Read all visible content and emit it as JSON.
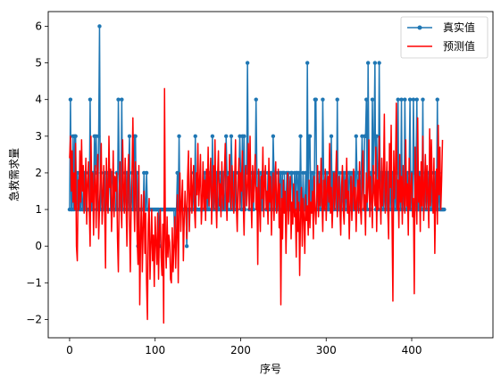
{
  "chart_data": {
    "type": "line",
    "xlabel": "序号",
    "ylabel": "急救需求量",
    "xlim": [
      -25,
      495
    ],
    "ylim": [
      -2.5,
      6.4
    ],
    "xticks": [
      0,
      100,
      200,
      300,
      400
    ],
    "yticks": [
      -2,
      -1,
      0,
      1,
      2,
      3,
      4,
      5,
      6
    ],
    "legend_position": "top-right",
    "grid": false,
    "series": [
      {
        "name": "真实值",
        "color": "#1f77b4",
        "marker": "circle",
        "values": [
          1,
          4,
          1,
          1,
          3,
          1,
          3,
          3,
          1,
          2,
          1,
          2,
          1,
          1,
          2,
          1,
          1,
          2,
          1,
          2,
          1,
          1,
          1,
          1,
          4,
          1,
          1,
          2,
          1,
          3,
          2,
          3,
          2,
          1,
          3,
          6,
          1,
          2,
          1,
          1,
          1,
          2,
          1,
          1,
          2,
          1,
          2,
          2,
          1,
          2,
          2,
          1,
          1,
          1,
          1,
          2,
          1,
          4,
          2,
          1,
          1,
          4,
          1,
          1,
          1,
          2,
          1,
          2,
          1,
          2,
          3,
          1,
          1,
          2,
          1,
          1,
          3,
          3,
          1,
          2,
          0,
          1,
          1,
          1,
          1,
          1,
          1,
          2,
          1,
          1,
          2,
          1,
          1,
          1,
          1,
          1,
          1,
          1,
          1,
          1,
          1,
          1,
          1,
          1,
          1,
          0,
          1,
          1,
          1,
          1,
          1,
          1,
          1,
          1,
          1,
          1,
          1,
          1,
          1,
          1,
          1,
          1,
          1,
          0,
          1,
          1,
          2,
          1,
          3,
          1,
          1,
          1,
          1,
          1,
          1,
          1,
          1,
          0,
          1,
          1,
          1,
          1,
          1,
          1,
          1,
          2,
          1,
          3,
          1,
          1,
          1,
          1,
          1,
          1,
          1,
          1,
          1,
          1,
          2,
          1,
          2,
          1,
          2,
          1,
          2,
          2,
          1,
          3,
          1,
          1,
          2,
          1,
          2,
          1,
          1,
          2,
          1,
          2,
          1,
          1,
          2,
          1,
          1,
          3,
          2,
          1,
          2,
          2,
          1,
          3,
          2,
          1,
          2,
          1,
          2,
          1,
          1,
          2,
          2,
          3,
          2,
          1,
          3,
          1,
          3,
          1,
          2,
          2,
          5,
          2,
          1,
          2,
          2,
          1,
          2,
          1,
          2,
          2,
          4,
          2,
          1,
          1,
          2,
          1,
          2,
          1,
          1,
          2,
          2,
          2,
          1,
          1,
          2,
          1,
          2,
          1,
          2,
          1,
          3,
          2,
          1,
          2,
          1,
          1,
          2,
          1,
          2,
          2,
          1,
          2,
          2,
          2,
          1,
          1,
          2,
          1,
          2,
          1,
          1,
          2,
          2,
          1,
          1,
          2,
          1,
          2,
          2,
          1,
          2,
          1,
          3,
          1,
          1,
          2,
          1,
          1,
          2,
          1,
          5,
          1,
          3,
          3,
          1,
          2,
          1,
          2,
          1,
          4,
          4,
          1,
          2,
          1,
          2,
          1,
          2,
          1,
          4,
          2,
          1,
          2,
          1,
          2,
          1,
          1,
          2,
          1,
          3,
          1,
          2,
          1,
          2,
          2,
          1,
          4,
          1,
          1,
          2,
          1,
          1,
          2,
          1,
          2,
          1,
          2,
          1,
          2,
          1,
          2,
          2,
          1,
          2,
          1,
          1,
          2,
          1,
          3,
          2,
          1,
          2,
          2,
          1,
          2,
          3,
          2,
          1,
          3,
          3,
          4,
          1,
          5,
          2,
          1,
          2,
          1,
          4,
          2,
          3,
          5,
          1,
          3,
          2,
          1,
          5,
          2,
          2,
          1,
          2,
          1,
          2,
          1,
          2,
          1,
          2,
          1,
          2,
          1,
          2,
          1,
          2,
          1,
          1,
          2,
          1,
          2,
          4,
          1,
          2,
          1,
          4,
          1,
          2,
          1,
          4,
          2,
          1,
          2,
          1,
          2,
          4,
          1,
          2,
          1,
          4,
          2,
          1,
          2,
          4,
          1,
          1,
          2,
          1,
          2,
          1,
          4,
          1,
          1,
          2,
          1,
          2,
          1,
          2,
          2,
          1,
          2,
          1,
          1,
          2,
          1,
          2,
          1,
          4,
          1,
          2,
          1,
          1,
          1,
          1,
          1,
          1
        ],
        "x_start": 0,
        "x_step": 1
      },
      {
        "name": "预测值",
        "color": "#ff0000",
        "marker": "none",
        "values": [
          2.4,
          3.0,
          1.5,
          2.6,
          1.2,
          2.0,
          1.0,
          2.8,
          0.0,
          -0.4,
          1.8,
          1.0,
          2.6,
          1.2,
          2.9,
          1.5,
          2.2,
          0.9,
          1.4,
          2.4,
          0.6,
          1.7,
          2.3,
          1.0,
          0.0,
          3.0,
          1.2,
          2.0,
          0.3,
          1.7,
          2.2,
          0.5,
          1.8,
          2.5,
          0.2,
          1.1,
          1.9,
          2.8,
          0.6,
          1.4,
          2.2,
          1.0,
          -0.6,
          2.4,
          1.3,
          0.9,
          3.0,
          1.6,
          2.1,
          0.4,
          1.2,
          2.6,
          0.8,
          1.9,
          1.5,
          2.0,
          0.2,
          -0.7,
          1.4,
          2.3,
          1.1,
          0.5,
          2.9,
          1.6,
          0.9,
          2.4,
          1.3,
          0.0,
          1.8,
          2.5,
          0.7,
          -0.7,
          1.2,
          2.0,
          3.5,
          1.5,
          0.4,
          2.3,
          1.6,
          0.2,
          -0.5,
          2.2,
          -1.6,
          0.2,
          1.4,
          -0.7,
          0.5,
          1.5,
          -0.2,
          0.9,
          -1.0,
          -2.0,
          0.6,
          1.3,
          -0.9,
          0.0,
          1.0,
          -0.4,
          0.3,
          -1.1,
          0.8,
          0.1,
          -0.5,
          0.9,
          -0.9,
          0.4,
          1.0,
          -0.3,
          -0.8,
          0.6,
          -2.1,
          4.3,
          0.2,
          -0.6,
          0.8,
          -0.3,
          0.3,
          0.1,
          -0.9,
          -1.0,
          0.5,
          -0.7,
          0.0,
          0.8,
          -0.6,
          0.3,
          1.4,
          -1.0,
          0.9,
          2.0,
          0.4,
          1.2,
          1.8,
          -0.4,
          0.7,
          1.5,
          1.0,
          0.2,
          1.9,
          2.6,
          0.4,
          1.3,
          2.4,
          0.9,
          1.6,
          2.2,
          1.0,
          0.5,
          2.0,
          1.4,
          2.8,
          1.1,
          1.7,
          2.5,
          0.6,
          1.2,
          2.3,
          1.0,
          1.8,
          0.7,
          2.1,
          1.3,
          2.7,
          1.1,
          1.8,
          2.4,
          0.6,
          1.5,
          2.2,
          1.0,
          2.9,
          1.3,
          0.5,
          1.9,
          2.6,
          1.1,
          1.7,
          0.8,
          2.3,
          1.4,
          1.0,
          2.0,
          2.8,
          1.5,
          0.7,
          1.9,
          1.2,
          2.5,
          1.6,
          1.0,
          2.2,
          1.4,
          0.9,
          1.8,
          2.9,
          1.1,
          0.4,
          1.7,
          2.4,
          1.0,
          2.0,
          1.5,
          2.6,
          1.2,
          0.3,
          1.9,
          2.2,
          1.1,
          1.6,
          2.8,
          1.0,
          3.0,
          1.4,
          0.5,
          2.2,
          1.2,
          1.8,
          2.5,
          1.0,
          1.6,
          -0.5,
          2.1,
          1.1,
          0.4,
          1.9,
          1.3,
          2.7,
          0.8,
          1.7,
          2.2,
          1.0,
          1.5,
          0.6,
          2.4,
          1.2,
          1.9,
          0.3,
          1.4,
          2.0,
          0.7,
          1.6,
          2.3,
          0.9,
          1.2,
          2.1,
          0.5,
          1.7,
          -1.6,
          1.3,
          0.2,
          1.8,
          0.9,
          1.5,
          -0.2,
          1.1,
          2.0,
          0.6,
          1.4,
          1.9,
          0.2,
          1.2,
          0.6,
          1.7,
          0.8,
          1.0,
          -0.3,
          1.5,
          0.4,
          1.2,
          -0.8,
          0.9,
          1.6,
          0.0,
          1.3,
          0.8,
          -0.2,
          1.4,
          0.7,
          1.1,
          0.3,
          1.8,
          0.5,
          1.2,
          0.9,
          1.5,
          0.2,
          1.9,
          1.0,
          0.6,
          1.4,
          2.2,
          0.8,
          1.7,
          1.1,
          2.4,
          1.3,
          0.4,
          1.8,
          1.0,
          2.1,
          0.7,
          1.5,
          1.9,
          1.2,
          2.8,
          0.9,
          1.6,
          0.5,
          1.3,
          2.0,
          1.0,
          1.7,
          2.6,
          0.8,
          1.4,
          1.9,
          1.1,
          0.3,
          1.6,
          2.2,
          1.0,
          0.6,
          1.8,
          1.3,
          2.4,
          0.9,
          1.5,
          0.2,
          1.2,
          1.9,
          0.7,
          1.4,
          2.1,
          1.0,
          1.6,
          0.4,
          1.3,
          1.8,
          0.9,
          2.3,
          1.1,
          0.6,
          1.7,
          2.6,
          1.0,
          1.4,
          0.3,
          2.0,
          1.2,
          1.6,
          2.9,
          0.8,
          1.9,
          1.3,
          0.5,
          2.2,
          1.5,
          1.1,
          2.7,
          0.4,
          1.8,
          1.0,
          3.0,
          1.4,
          0.6,
          2.4,
          1.1,
          1.9,
          3.6,
          0.9,
          1.5,
          2.3,
          1.0,
          0.2,
          2.8,
          1.6,
          3.3,
          0.7,
          -1.5,
          2.6,
          1.3,
          2.1,
          3.9,
          1.0,
          1.8,
          0.5,
          2.5,
          1.2,
          1.9,
          0.6,
          2.2,
          1.4,
          0.9,
          2.9,
          1.1,
          1.7,
          0.3,
          2.4,
          1.0,
          1.6,
          2.0,
          0.8,
          1.3,
          -1.3,
          2.7,
          1.5,
          0.6,
          3.5,
          1.2,
          1.9,
          0.4,
          2.3,
          1.1,
          3.0,
          0.7,
          1.6,
          2.5,
          1.0,
          2.2,
          1.4,
          0.5,
          3.2,
          1.1,
          2.9,
          1.7,
          0.9,
          2.4,
          -0.2,
          1.5,
          2.1,
          0.6,
          3.3,
          1.4,
          2.7,
          1.0,
          1.8,
          2.9
        ]
      }
    ]
  }
}
